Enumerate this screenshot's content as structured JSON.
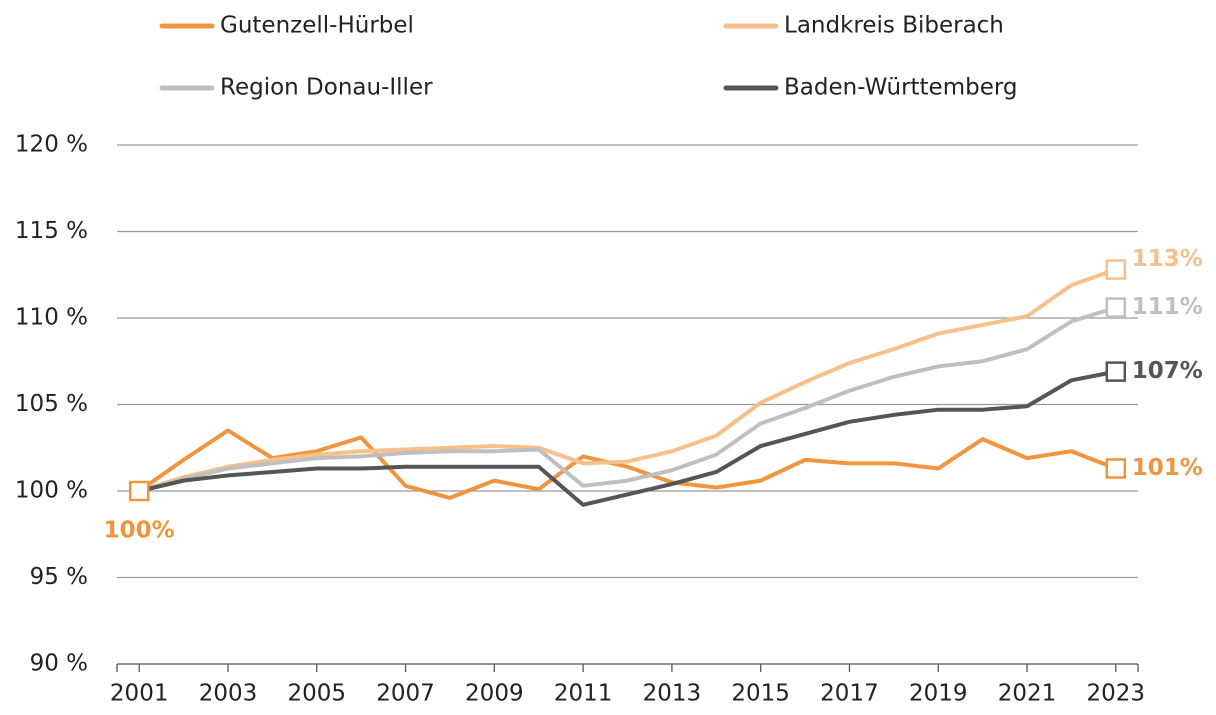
{
  "chart_data": {
    "type": "line",
    "x": [
      2001,
      2002,
      2003,
      2004,
      2005,
      2006,
      2007,
      2008,
      2009,
      2010,
      2011,
      2012,
      2013,
      2014,
      2015,
      2016,
      2017,
      2018,
      2019,
      2020,
      2021,
      2022,
      2023
    ],
    "xlim": [
      2000.5,
      2023.5
    ],
    "xticks": [
      2001,
      2003,
      2005,
      2007,
      2009,
      2011,
      2013,
      2015,
      2017,
      2019,
      2021,
      2023
    ],
    "ylim": [
      90,
      120
    ],
    "yticks": [
      {
        "value": 90,
        "label": "90 %"
      },
      {
        "value": 95,
        "label": "95 %"
      },
      {
        "value": 100,
        "label": "100 %"
      },
      {
        "value": 105,
        "label": "105 %"
      },
      {
        "value": 110,
        "label": "110 %"
      },
      {
        "value": 115,
        "label": "115 %"
      },
      {
        "value": 120,
        "label": "120 %"
      }
    ],
    "grid": true,
    "legend": "top",
    "series": [
      {
        "name": "Gutenzell-Hürbel",
        "color": "#f0953f",
        "values": [
          100,
          101.8,
          103.5,
          101.9,
          102.3,
          103.1,
          100.3,
          99.6,
          100.6,
          100.1,
          102.0,
          101.4,
          100.5,
          100.2,
          100.6,
          101.8,
          101.6,
          101.6,
          101.3,
          103.0,
          101.9,
          102.3,
          101.3
        ],
        "value_labels": [
          "100%",
          null,
          null,
          null,
          null,
          null,
          null,
          null,
          null,
          null,
          null,
          null,
          null,
          null,
          null,
          null,
          null,
          null,
          null,
          null,
          null,
          null,
          "101%"
        ]
      },
      {
        "name": "Landkreis Biberach",
        "color": "#f7c08a",
        "values": [
          100,
          100.8,
          101.4,
          101.8,
          102.1,
          102.3,
          102.4,
          102.5,
          102.6,
          102.5,
          101.6,
          101.7,
          102.3,
          103.2,
          105.1,
          106.3,
          107.4,
          108.2,
          109.1,
          109.6,
          110.1,
          111.9,
          112.8
        ],
        "value_labels": [
          null,
          null,
          null,
          null,
          null,
          null,
          null,
          null,
          null,
          null,
          null,
          null,
          null,
          null,
          null,
          null,
          null,
          null,
          null,
          null,
          null,
          null,
          "113%"
        ]
      },
      {
        "name": "Region Donau-Iller",
        "color": "#bfbfbf",
        "values": [
          100,
          100.7,
          101.3,
          101.6,
          101.9,
          102.0,
          102.2,
          102.3,
          102.3,
          102.4,
          100.3,
          100.6,
          101.2,
          102.1,
          103.9,
          104.8,
          105.8,
          106.6,
          107.2,
          107.5,
          108.2,
          109.8,
          110.6
        ],
        "value_labels": [
          null,
          null,
          null,
          null,
          null,
          null,
          null,
          null,
          null,
          null,
          null,
          null,
          null,
          null,
          null,
          null,
          null,
          null,
          null,
          null,
          null,
          null,
          "111%"
        ]
      },
      {
        "name": "Baden-Württemberg",
        "color": "#555555",
        "values": [
          100,
          100.6,
          100.9,
          101.1,
          101.3,
          101.3,
          101.4,
          101.4,
          101.4,
          101.4,
          99.2,
          99.8,
          100.4,
          101.1,
          102.6,
          103.3,
          104.0,
          104.4,
          104.7,
          104.7,
          104.9,
          106.4,
          106.9
        ],
        "value_labels": [
          null,
          null,
          null,
          null,
          null,
          null,
          null,
          null,
          null,
          null,
          null,
          null,
          null,
          null,
          null,
          null,
          null,
          null,
          null,
          null,
          null,
          null,
          "107%"
        ]
      }
    ]
  }
}
